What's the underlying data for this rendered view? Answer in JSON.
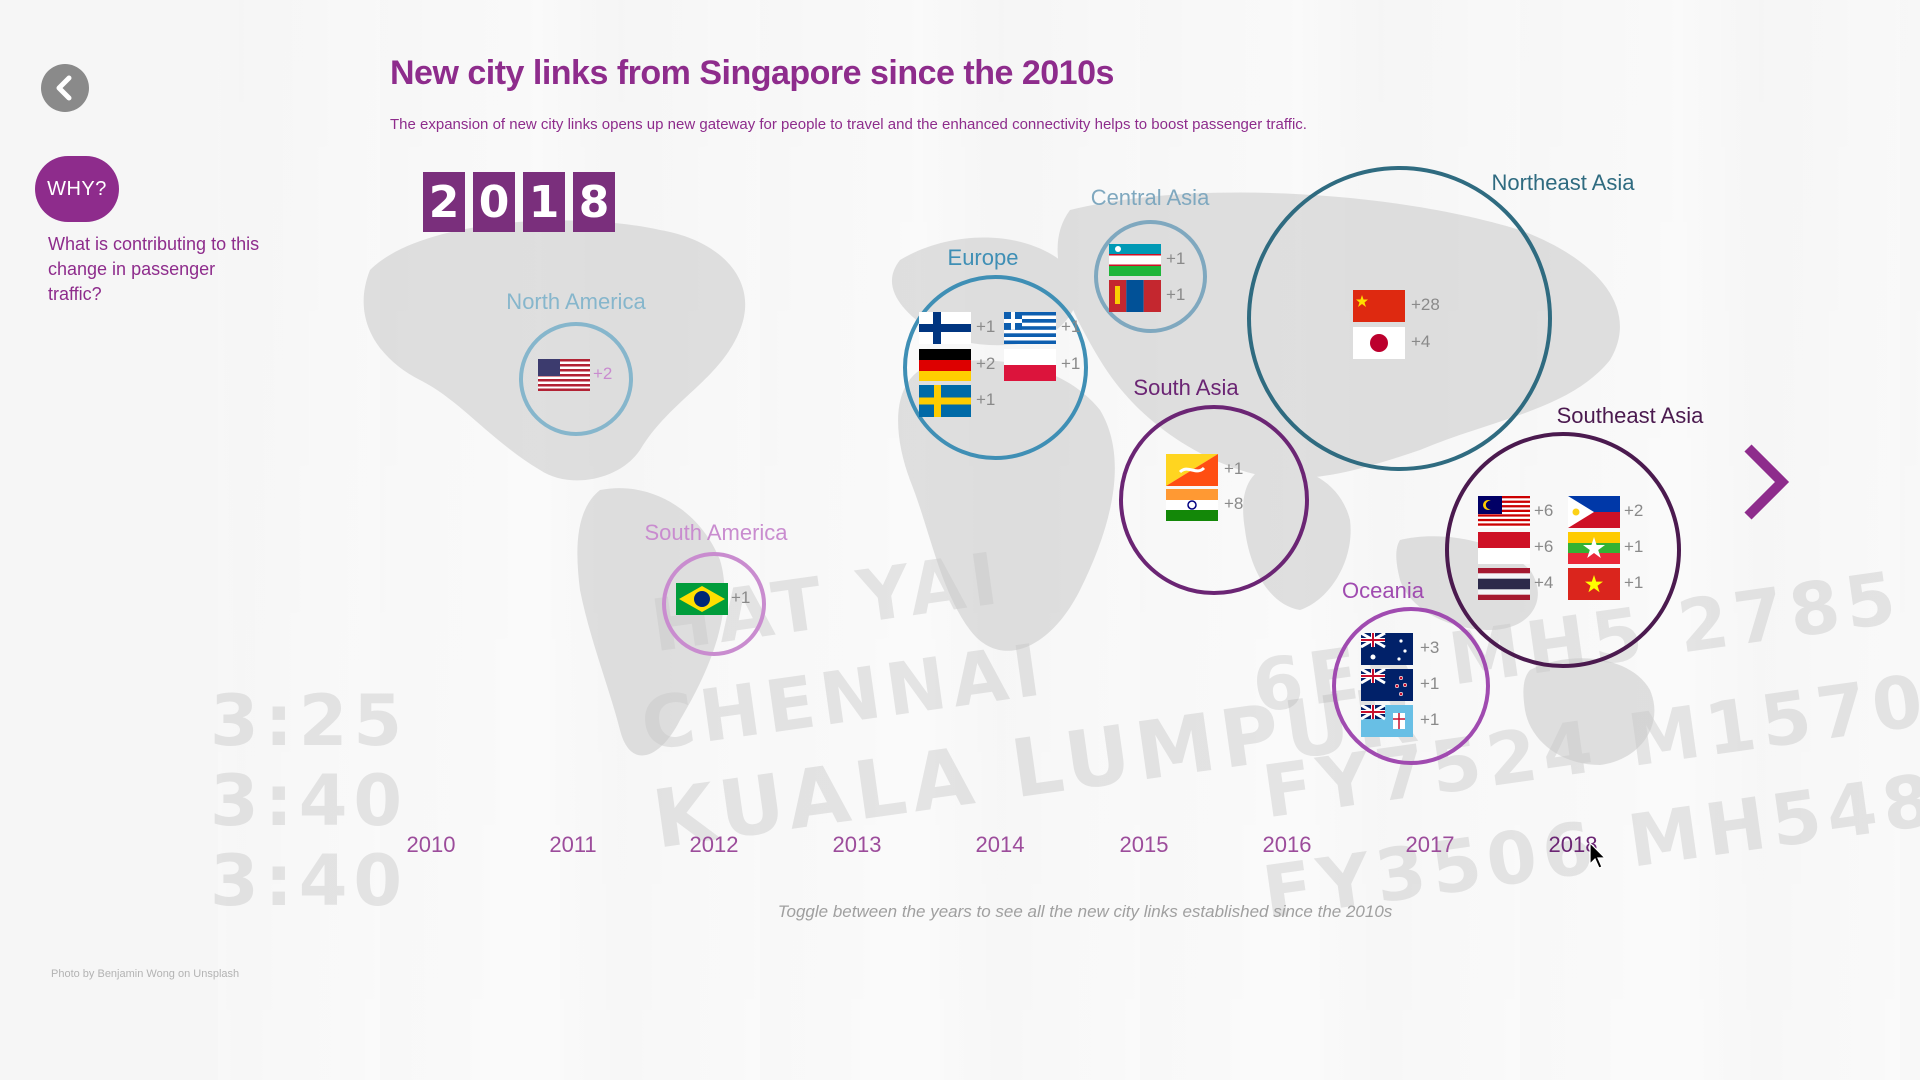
{
  "page": {
    "title": "New city links from Singapore since the 2010s",
    "subtitle": "The expansion of new city links opens up new gateway for people to travel and the enhanced connectivity helps to boost passenger traffic.",
    "credit": "Photo by Benjamin Wong on Unsplash",
    "toggle_hint": "Toggle between the years to see all the new city links established since the 2010s"
  },
  "sidebar": {
    "why_label": "WHY?",
    "why_text": "What is contributing to this change in passenger traffic?"
  },
  "year_display": {
    "digits": [
      "2",
      "0",
      "1",
      "8"
    ]
  },
  "timeline": {
    "years": [
      "2010",
      "2011",
      "2012",
      "2013",
      "2014",
      "2015",
      "2016",
      "2017",
      "2018"
    ],
    "selected": "2018"
  },
  "regions": {
    "north_america": {
      "label": "North America",
      "color": "#86b6cc",
      "flags": [
        {
          "country": "United States",
          "count": "+2"
        }
      ]
    },
    "south_america": {
      "label": "South America",
      "color": "#c98ccf",
      "flags": [
        {
          "country": "Brazil",
          "count": "+1"
        }
      ]
    },
    "europe": {
      "label": "Europe",
      "color": "#3f8fb5",
      "flags": [
        {
          "country": "Finland",
          "count": "+1"
        },
        {
          "country": "Greece",
          "count": "+1"
        },
        {
          "country": "Germany",
          "count": "+2"
        },
        {
          "country": "Poland",
          "count": "+1"
        },
        {
          "country": "Sweden",
          "count": "+1"
        }
      ]
    },
    "central_asia": {
      "label": "Central Asia",
      "color": "#7fa8bf",
      "flags": [
        {
          "country": "Uzbekistan",
          "count": "+1"
        },
        {
          "country": "Mongolia",
          "count": "+1"
        }
      ]
    },
    "south_asia": {
      "label": "South Asia",
      "color": "#6b2574",
      "flags": [
        {
          "country": "Bhutan",
          "count": "+1"
        },
        {
          "country": "India",
          "count": "+8"
        }
      ]
    },
    "northeast_asia": {
      "label": "Northeast Asia",
      "color": "#2f6b80",
      "flags": [
        {
          "country": "China",
          "count": "+28"
        },
        {
          "country": "Japan",
          "count": "+4"
        }
      ]
    },
    "southeast_asia": {
      "label": "Southeast Asia",
      "color": "#4b1a4f",
      "flags": [
        {
          "country": "Malaysia",
          "count": "+6"
        },
        {
          "country": "Philippines",
          "count": "+2"
        },
        {
          "country": "Indonesia",
          "count": "+6"
        },
        {
          "country": "Myanmar",
          "count": "+1"
        },
        {
          "country": "Thailand",
          "count": "+4"
        },
        {
          "country": "Vietnam",
          "count": "+1"
        }
      ]
    },
    "oceania": {
      "label": "Oceania",
      "color": "#a04bb0",
      "flags": [
        {
          "country": "Australia",
          "count": "+3"
        },
        {
          "country": "New Zealand",
          "count": "+1"
        },
        {
          "country": "Fiji",
          "count": "+1"
        }
      ]
    }
  },
  "icons": {
    "back": "chevron-left-icon",
    "next": "chevron-right-icon",
    "cursor": "mouse-pointer-icon"
  },
  "colors": {
    "accent": "#8e2c8c",
    "digit_bg": "#7a2f7c"
  }
}
